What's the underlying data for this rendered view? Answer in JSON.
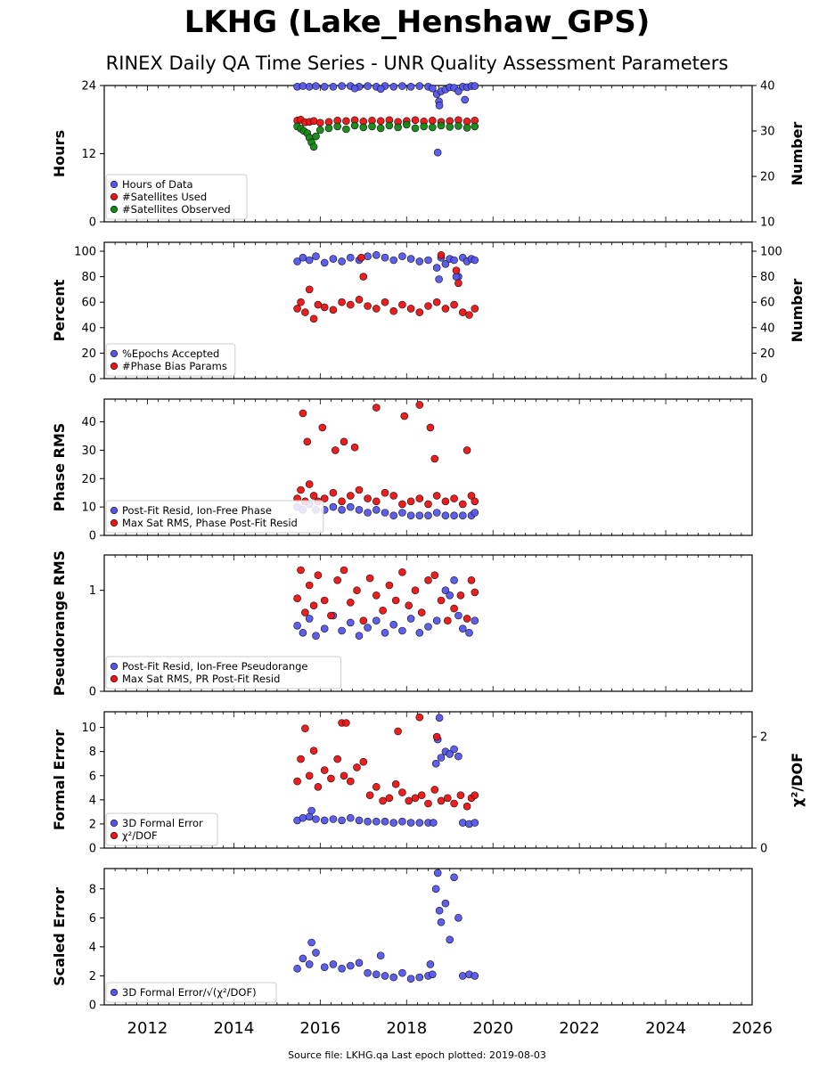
{
  "header": {
    "title": "LKHG (Lake_Henshaw_GPS)",
    "subtitle": "RINEX Daily QA Time Series - UNR Quality Assessment Parameters"
  },
  "footer": "Source file: LKHG.qa Last epoch plotted: 2019-08-03",
  "colors": {
    "blue": "#5555ee",
    "red": "#ee1111",
    "green": "#118811",
    "edge": "#111111"
  },
  "chart_data": [
    {
      "type": "scatter",
      "ylabel": "Hours",
      "ylabel_right": "Number",
      "xlim": [
        2011.0,
        2026.0
      ],
      "ylim": [
        0,
        24
      ],
      "ylim_right": [
        10,
        40
      ],
      "yticks": [
        0,
        12,
        24
      ],
      "yticks_right": [
        10,
        20,
        30,
        40
      ],
      "grid": false,
      "legend_position": "lower-left",
      "series": [
        {
          "name": "Hours of Data",
          "color": "blue",
          "axis": "left",
          "x": [
            2015.47,
            2015.6,
            2015.75,
            2015.9,
            2016.1,
            2016.3,
            2016.5,
            2016.7,
            2016.9,
            2017.1,
            2017.3,
            2017.5,
            2017.7,
            2017.9,
            2018.1,
            2018.3,
            2018.5,
            2018.6,
            2018.7,
            2018.75,
            2018.8,
            2018.9,
            2019.0,
            2019.1,
            2019.2,
            2019.3,
            2019.4,
            2019.5,
            2019.58,
            2018.72,
            2018.76,
            2019.35,
            2017.4,
            2016.8
          ],
          "y": [
            23.8,
            23.9,
            23.8,
            23.9,
            23.8,
            23.8,
            23.9,
            23.9,
            23.8,
            23.9,
            23.8,
            23.9,
            23.8,
            23.9,
            23.8,
            23.9,
            23.8,
            23.5,
            22.5,
            21.2,
            23.0,
            23.3,
            23.7,
            23.6,
            23.0,
            23.8,
            23.7,
            23.9,
            23.9,
            12.2,
            20.5,
            21.5,
            23.4,
            23.5
          ]
        },
        {
          "name": "#Satellites Used",
          "color": "red",
          "axis": "right",
          "x": [
            2015.47,
            2015.55,
            2015.65,
            2015.75,
            2015.85,
            2016.0,
            2016.2,
            2016.4,
            2016.6,
            2016.8,
            2017.0,
            2017.2,
            2017.4,
            2017.6,
            2017.8,
            2018.0,
            2018.2,
            2018.4,
            2018.6,
            2018.8,
            2019.0,
            2019.2,
            2019.4,
            2019.58
          ],
          "y": [
            32.3,
            32.5,
            31.9,
            32.0,
            32.2,
            31.8,
            32.0,
            32.3,
            32.2,
            32.4,
            32.1,
            32.3,
            32.2,
            32.4,
            32.0,
            32.2,
            32.4,
            32.1,
            32.3,
            32.0,
            32.2,
            32.4,
            32.1,
            32.3
          ]
        },
        {
          "name": "#Satellites Observed",
          "color": "green",
          "axis": "right",
          "x": [
            2015.47,
            2015.55,
            2015.62,
            2015.7,
            2015.75,
            2015.8,
            2015.85,
            2015.9,
            2016.0,
            2016.2,
            2016.4,
            2016.6,
            2016.8,
            2017.0,
            2017.2,
            2017.4,
            2017.6,
            2017.8,
            2018.0,
            2018.2,
            2018.4,
            2018.6,
            2018.8,
            2019.0,
            2019.2,
            2019.4,
            2019.58
          ],
          "y": [
            31.0,
            30.5,
            30.0,
            29.5,
            28.5,
            27.5,
            26.5,
            28.8,
            30.2,
            30.6,
            31.0,
            30.4,
            31.2,
            30.8,
            31.0,
            30.6,
            31.2,
            30.8,
            31.4,
            30.6,
            31.0,
            30.8,
            31.2,
            30.9,
            31.1,
            30.7,
            31.0
          ]
        }
      ]
    },
    {
      "type": "scatter",
      "ylabel": "Percent",
      "ylabel_right": "Number",
      "xlim": [
        2011.0,
        2026.0
      ],
      "ylim": [
        0,
        107
      ],
      "ylim_right": [
        0,
        107
      ],
      "yticks": [
        0,
        20,
        40,
        60,
        80,
        100
      ],
      "yticks_right": [
        0,
        20,
        40,
        60,
        80,
        100
      ],
      "grid": false,
      "legend_position": "lower-left",
      "series": [
        {
          "name": "%Epochs Accepted",
          "color": "blue",
          "axis": "left",
          "x": [
            2015.47,
            2015.6,
            2015.75,
            2015.9,
            2016.1,
            2016.3,
            2016.5,
            2016.7,
            2016.9,
            2017.1,
            2017.3,
            2017.5,
            2017.7,
            2017.9,
            2018.1,
            2018.3,
            2018.5,
            2018.7,
            2018.8,
            2018.9,
            2019.0,
            2019.1,
            2019.2,
            2019.3,
            2019.4,
            2019.5,
            2019.58,
            2018.75,
            2019.15
          ],
          "y": [
            92,
            95,
            93,
            96,
            91,
            94,
            92,
            95,
            93,
            96,
            97,
            95,
            93,
            96,
            94,
            92,
            93,
            87,
            95,
            90,
            94,
            93,
            80,
            95,
            92,
            94,
            93,
            78,
            80
          ]
        },
        {
          "name": "#Phase Bias Params",
          "color": "red",
          "axis": "right",
          "x": [
            2015.47,
            2015.55,
            2015.65,
            2015.75,
            2015.85,
            2015.95,
            2016.1,
            2016.3,
            2016.5,
            2016.7,
            2016.9,
            2017.1,
            2017.3,
            2017.5,
            2017.7,
            2017.9,
            2018.1,
            2018.3,
            2018.5,
            2018.7,
            2018.9,
            2019.1,
            2019.2,
            2019.3,
            2019.45,
            2019.58,
            2017.0,
            2016.95,
            2018.8,
            2019.15
          ],
          "y": [
            55,
            60,
            52,
            70,
            47,
            58,
            56,
            54,
            60,
            58,
            62,
            57,
            55,
            60,
            53,
            58,
            55,
            52,
            57,
            60,
            55,
            58,
            75,
            52,
            50,
            55,
            80,
            95,
            97,
            85
          ]
        }
      ]
    },
    {
      "type": "scatter",
      "ylabel": "Phase RMS",
      "xlim": [
        2011.0,
        2026.0
      ],
      "ylim": [
        0,
        48
      ],
      "yticks": [
        0,
        10,
        20,
        30,
        40
      ],
      "grid": false,
      "legend_position": "lower-left",
      "series": [
        {
          "name": "Post-Fit Resid, Ion-Free Phase",
          "color": "blue",
          "axis": "left",
          "x": [
            2015.47,
            2015.6,
            2015.75,
            2015.9,
            2016.1,
            2016.3,
            2016.5,
            2016.7,
            2016.9,
            2017.1,
            2017.3,
            2017.5,
            2017.7,
            2017.9,
            2018.1,
            2018.3,
            2018.5,
            2018.7,
            2018.9,
            2019.1,
            2019.3,
            2019.5,
            2019.58
          ],
          "y": [
            10,
            9,
            11,
            9,
            9,
            10,
            9,
            10,
            9,
            8,
            9,
            8,
            7,
            8,
            7,
            7,
            7,
            8,
            7,
            7,
            7,
            7,
            8
          ]
        },
        {
          "name": "Max Sat RMS, Phase Post-Fit Resid",
          "color": "red",
          "axis": "left",
          "x": [
            2015.47,
            2015.55,
            2015.65,
            2015.75,
            2015.85,
            2015.95,
            2016.1,
            2016.3,
            2016.5,
            2016.7,
            2016.9,
            2017.1,
            2017.3,
            2017.5,
            2017.7,
            2017.9,
            2018.1,
            2018.3,
            2018.5,
            2018.7,
            2018.9,
            2019.1,
            2019.3,
            2019.5,
            2019.58,
            2015.6,
            2015.7,
            2016.05,
            2016.35,
            2016.55,
            2016.8,
            2017.3,
            2017.95,
            2018.3,
            2018.55,
            2018.65,
            2019.4
          ],
          "y": [
            13,
            16,
            12,
            18,
            14,
            12,
            13,
            15,
            12,
            14,
            16,
            13,
            12,
            15,
            14,
            11,
            12,
            13,
            11,
            14,
            12,
            13,
            11,
            14,
            12,
            43,
            33,
            38,
            30,
            33,
            31,
            45,
            42,
            46,
            38,
            27,
            30
          ]
        }
      ]
    },
    {
      "type": "scatter",
      "ylabel": "Pseudorange RMS",
      "xlim": [
        2011.0,
        2026.0
      ],
      "ylim": [
        0,
        1.35
      ],
      "yticks": [
        0,
        1
      ],
      "grid": false,
      "legend_position": "lower-left",
      "series": [
        {
          "name": "Post-Fit Resid, Ion-Free Pseudorange",
          "color": "blue",
          "axis": "left",
          "x": [
            2015.47,
            2015.6,
            2015.75,
            2015.9,
            2016.1,
            2016.3,
            2016.5,
            2016.7,
            2016.9,
            2017.1,
            2017.3,
            2017.5,
            2017.7,
            2017.9,
            2018.1,
            2018.3,
            2018.5,
            2018.7,
            2018.9,
            2019.0,
            2019.1,
            2019.2,
            2019.3,
            2019.45,
            2019.58
          ],
          "y": [
            0.65,
            0.58,
            0.72,
            0.55,
            0.62,
            0.75,
            0.6,
            0.68,
            0.55,
            0.63,
            0.7,
            0.58,
            0.66,
            0.6,
            0.72,
            0.58,
            0.64,
            0.7,
            1.0,
            0.95,
            1.1,
            0.75,
            0.62,
            0.58,
            0.7
          ]
        },
        {
          "name": "Max Sat RMS, PR Post-Fit Resid",
          "color": "red",
          "axis": "left",
          "x": [
            2015.47,
            2015.55,
            2015.65,
            2015.75,
            2015.85,
            2015.95,
            2016.1,
            2016.25,
            2016.4,
            2016.55,
            2016.7,
            2016.85,
            2017.0,
            2017.15,
            2017.3,
            2017.45,
            2017.6,
            2017.75,
            2017.9,
            2018.05,
            2018.2,
            2018.35,
            2018.5,
            2018.65,
            2018.8,
            2018.95,
            2019.1,
            2019.25,
            2019.4,
            2019.5,
            2019.58
          ],
          "y": [
            0.92,
            1.2,
            0.78,
            1.05,
            0.85,
            1.15,
            0.9,
            0.75,
            1.1,
            1.2,
            0.88,
            1.0,
            0.7,
            1.12,
            0.95,
            0.8,
            1.05,
            0.9,
            1.18,
            0.85,
            1.0,
            0.78,
            1.1,
            1.15,
            0.9,
            0.7,
            0.82,
            0.95,
            0.72,
            1.1,
            0.98
          ]
        }
      ]
    },
    {
      "type": "scatter",
      "ylabel": "Formal Error",
      "ylabel_right": "χ²/DOF",
      "xlim": [
        2011.0,
        2026.0
      ],
      "ylim": [
        0,
        11.3
      ],
      "ylim_right": [
        0,
        2.45
      ],
      "yticks": [
        0,
        2,
        4,
        6,
        8,
        10
      ],
      "yticks_right": [
        0,
        2
      ],
      "grid": false,
      "legend_position": "lower-left",
      "series": [
        {
          "name": "3D Formal Error",
          "color": "blue",
          "axis": "left",
          "x": [
            2015.47,
            2015.6,
            2015.75,
            2015.9,
            2016.1,
            2016.3,
            2016.5,
            2016.7,
            2016.9,
            2017.1,
            2017.3,
            2017.5,
            2017.7,
            2017.9,
            2018.1,
            2018.3,
            2018.5,
            2018.62,
            2018.68,
            2018.72,
            2018.76,
            2018.8,
            2018.9,
            2019.0,
            2019.1,
            2019.2,
            2019.3,
            2019.45,
            2019.58,
            2015.8
          ],
          "y": [
            2.3,
            2.5,
            2.6,
            2.4,
            2.3,
            2.4,
            2.3,
            2.5,
            2.3,
            2.2,
            2.2,
            2.2,
            2.1,
            2.2,
            2.1,
            2.1,
            2.1,
            2.1,
            7.0,
            9.0,
            10.8,
            7.5,
            8.0,
            7.8,
            8.2,
            7.6,
            2.1,
            2.0,
            2.1,
            3.1
          ]
        },
        {
          "name": "χ²/DOF",
          "color": "red",
          "axis": "right",
          "x": [
            2015.47,
            2015.55,
            2015.65,
            2015.75,
            2015.85,
            2015.95,
            2016.1,
            2016.25,
            2016.4,
            2016.55,
            2016.7,
            2016.85,
            2017.0,
            2017.15,
            2017.3,
            2017.45,
            2017.6,
            2017.75,
            2017.9,
            2018.05,
            2018.2,
            2018.35,
            2018.5,
            2018.65,
            2018.8,
            2018.95,
            2019.1,
            2019.25,
            2019.4,
            2019.5,
            2019.58,
            2016.5,
            2016.6,
            2017.8,
            2018.3,
            2018.7
          ],
          "y": [
            1.2,
            1.6,
            2.15,
            1.3,
            1.75,
            1.1,
            1.4,
            1.25,
            1.6,
            1.3,
            1.2,
            1.45,
            1.55,
            0.95,
            1.1,
            0.85,
            0.9,
            1.15,
            1.0,
            0.85,
            0.9,
            0.95,
            0.8,
            1.05,
            0.85,
            0.9,
            0.8,
            0.95,
            0.75,
            0.9,
            0.95,
            2.25,
            2.25,
            2.1,
            2.35,
            2.0
          ]
        }
      ]
    },
    {
      "type": "scatter",
      "ylabel": "Scaled Error",
      "xlim": [
        2011.0,
        2026.0
      ],
      "ylim": [
        0,
        9.4
      ],
      "yticks": [
        0,
        2,
        4,
        6,
        8
      ],
      "xticks": [
        "2012",
        "2014",
        "2016",
        "2018",
        "2020",
        "2022",
        "2024",
        "2026"
      ],
      "grid": false,
      "legend_position": "lower-left",
      "series": [
        {
          "name": "3D Formal Error/√(χ²/DOF)",
          "color": "blue",
          "axis": "left",
          "x": [
            2015.47,
            2015.6,
            2015.75,
            2015.9,
            2016.1,
            2016.3,
            2016.5,
            2016.7,
            2016.9,
            2017.1,
            2017.3,
            2017.5,
            2017.7,
            2017.9,
            2018.1,
            2018.3,
            2018.5,
            2018.6,
            2018.68,
            2018.72,
            2018.76,
            2018.8,
            2018.9,
            2019.0,
            2019.1,
            2019.2,
            2019.3,
            2019.45,
            2019.58,
            2015.8,
            2017.4,
            2018.55
          ],
          "y": [
            2.5,
            3.2,
            2.8,
            3.6,
            2.6,
            2.8,
            2.5,
            2.7,
            2.9,
            2.2,
            2.1,
            2.0,
            1.9,
            2.2,
            1.8,
            1.9,
            2.0,
            2.1,
            8.0,
            9.1,
            6.5,
            5.7,
            7.0,
            4.5,
            8.8,
            6.0,
            2.0,
            2.1,
            2.0,
            4.3,
            3.4,
            2.8
          ]
        }
      ]
    }
  ]
}
